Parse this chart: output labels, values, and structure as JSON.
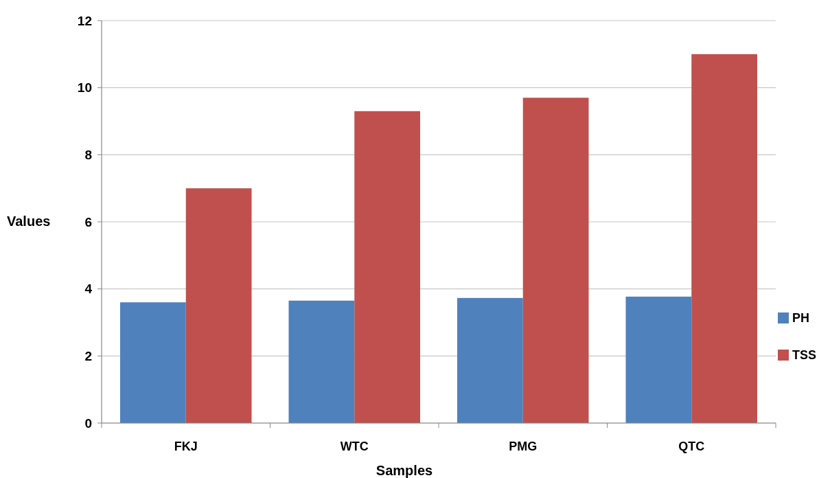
{
  "chart_data": {
    "type": "bar",
    "xlabel": "Samples",
    "ylabel": "Values",
    "categories": [
      "FKJ",
      "WTC",
      "PMG",
      "QTC"
    ],
    "series": [
      {
        "name": "PH",
        "color": "#4f81bd",
        "values": [
          3.6,
          3.65,
          3.73,
          3.77
        ]
      },
      {
        "name": "TSS",
        "color": "#c0504d",
        "values": [
          7.0,
          9.3,
          9.7,
          11.0
        ]
      }
    ],
    "ylim": [
      0,
      12
    ],
    "yticks": [
      0,
      2,
      4,
      6,
      8,
      10,
      12
    ],
    "grid": "y",
    "legend": "right"
  }
}
